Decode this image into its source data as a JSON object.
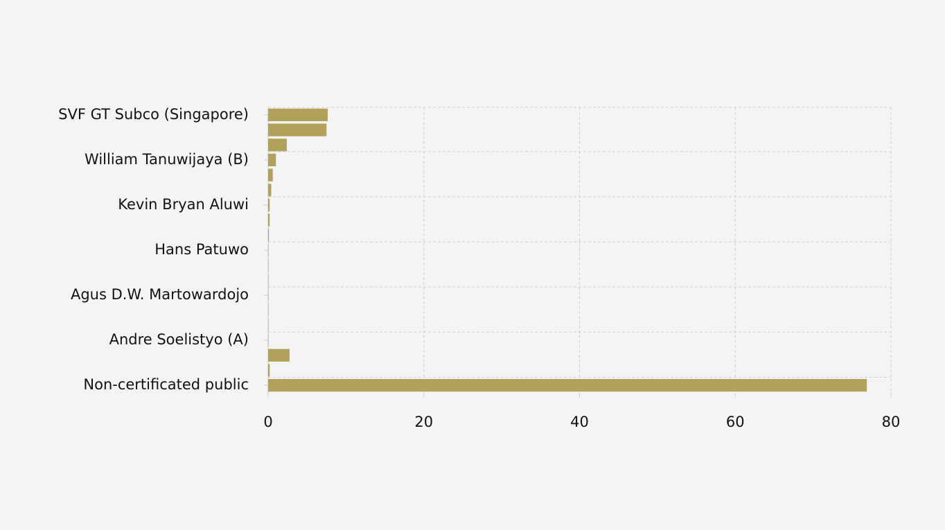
{
  "chart_data": {
    "type": "hbar",
    "categories": [
      "SVF GT Subco (Singapore)",
      null,
      null,
      "William Tanuwijaya (B)",
      null,
      null,
      "Kevin Bryan Aluwi",
      null,
      null,
      "Hans Patuwo",
      null,
      null,
      "Agus D.W. Martowardojo",
      null,
      null,
      "Andre Soelistyo (A)",
      null,
      null,
      "Non-certificated public"
    ],
    "values": [
      7.65,
      7.5,
      2.4,
      1.0,
      0.6,
      0.4,
      0.2,
      0.2,
      0.1,
      0.05,
      0.05,
      0.05,
      0.05,
      0.05,
      0.05,
      0.05,
      2.75,
      0.2,
      76.9
    ],
    "color": "#b1a15b",
    "xlim": [
      0,
      80
    ],
    "xticks": [
      0,
      20,
      40,
      60,
      80
    ],
    "grid": true
  }
}
